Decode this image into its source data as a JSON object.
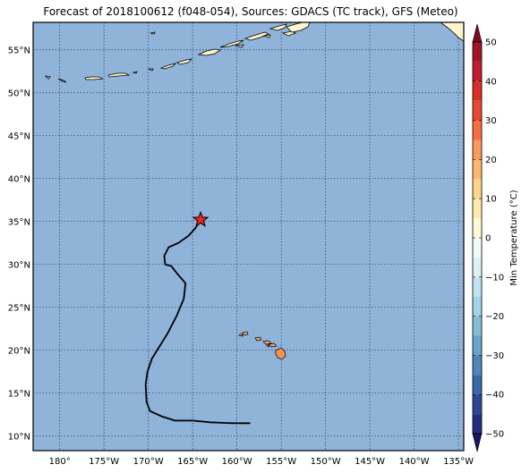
{
  "title": "Forecast of 2018100612 (f048-054), Sources: GDACS (TC track), GFS (Meteo)",
  "map": {
    "ocean_color": "#8fb3d9",
    "land_color": "#fff5cc",
    "grid": true,
    "lon_range": [
      -183,
      -134.4
    ],
    "lat_range": [
      8.3,
      58.2
    ],
    "lon_ticks": [
      {
        "value": -180,
        "label": "180°"
      },
      {
        "value": -175,
        "label": "175°W"
      },
      {
        "value": -170,
        "label": "170°W"
      },
      {
        "value": -165,
        "label": "165°W"
      },
      {
        "value": -160,
        "label": "160°W"
      },
      {
        "value": -155,
        "label": "155°W"
      },
      {
        "value": -150,
        "label": "150°W"
      },
      {
        "value": -145,
        "label": "145°W"
      },
      {
        "value": -140,
        "label": "140°W"
      },
      {
        "value": -135,
        "label": "135°W"
      }
    ],
    "lat_ticks": [
      {
        "value": 55,
        "label": "55°N"
      },
      {
        "value": 50,
        "label": "50°N"
      },
      {
        "value": 45,
        "label": "45°N"
      },
      {
        "value": 40,
        "label": "40°N"
      },
      {
        "value": 35,
        "label": "35°N"
      },
      {
        "value": 30,
        "label": "30°N"
      },
      {
        "value": 25,
        "label": "25°N"
      },
      {
        "value": 20,
        "label": "20°N"
      },
      {
        "value": 15,
        "label": "15°N"
      },
      {
        "value": 10,
        "label": "10°N"
      }
    ],
    "track": [
      [
        -158.5,
        11.5
      ],
      [
        -160.5,
        11.5
      ],
      [
        -163,
        11.6
      ],
      [
        -165,
        11.8
      ],
      [
        -167,
        11.8
      ],
      [
        -168.5,
        12.3
      ],
      [
        -169.8,
        12.9
      ],
      [
        -170.2,
        14
      ],
      [
        -170.3,
        16
      ],
      [
        -170.1,
        17.5
      ],
      [
        -169.6,
        19
      ],
      [
        -168.7,
        20.5
      ],
      [
        -167.8,
        22
      ],
      [
        -166.8,
        24
      ],
      [
        -166,
        26
      ],
      [
        -165.8,
        27.8
      ],
      [
        -166.8,
        29
      ],
      [
        -167.4,
        29.8
      ],
      [
        -168.1,
        30
      ],
      [
        -168.2,
        31
      ],
      [
        -167.7,
        32
      ],
      [
        -166.6,
        32.5
      ],
      [
        -165.5,
        33.3
      ],
      [
        -164.7,
        34.2
      ],
      [
        -164.1,
        35.2
      ]
    ],
    "storm_position": {
      "lon": -164.1,
      "lat": 35.2,
      "symbol": "star",
      "color": "#e8281e"
    }
  },
  "colorbar": {
    "label": "Min Temperature (°C)",
    "min": -50,
    "max": 50,
    "ticks": [
      "50",
      "40",
      "30",
      "20",
      "10",
      "0",
      "−10",
      "−20",
      "−30",
      "−40",
      "−50"
    ],
    "tick_values": [
      50,
      40,
      30,
      20,
      10,
      0,
      -10,
      -20,
      -30,
      -40,
      -50
    ],
    "bands": [
      {
        "from": 45,
        "to": 50,
        "color": "#a01527"
      },
      {
        "from": 40,
        "to": 45,
        "color": "#be1e2d"
      },
      {
        "from": 35,
        "to": 40,
        "color": "#d73027"
      },
      {
        "from": 30,
        "to": 35,
        "color": "#e34a33"
      },
      {
        "from": 25,
        "to": 30,
        "color": "#f46d43"
      },
      {
        "from": 20,
        "to": 25,
        "color": "#fb9a5a"
      },
      {
        "from": 15,
        "to": 20,
        "color": "#fdb86d"
      },
      {
        "from": 10,
        "to": 15,
        "color": "#fed38a"
      },
      {
        "from": 5,
        "to": 10,
        "color": "#fee9ac"
      },
      {
        "from": 0,
        "to": 5,
        "color": "#fff9d6"
      },
      {
        "from": -5,
        "to": 0,
        "color": "#f1fbfa"
      },
      {
        "from": -10,
        "to": -5,
        "color": "#dcf1f3"
      },
      {
        "from": -15,
        "to": -10,
        "color": "#c0e4ef"
      },
      {
        "from": -20,
        "to": -15,
        "color": "#a3d3e6"
      },
      {
        "from": -25,
        "to": -20,
        "color": "#86bcda"
      },
      {
        "from": -30,
        "to": -25,
        "color": "#6aa3cc"
      },
      {
        "from": -35,
        "to": -30,
        "color": "#4f86bb"
      },
      {
        "from": -40,
        "to": -35,
        "color": "#3a67a8"
      },
      {
        "from": -45,
        "to": -40,
        "color": "#2b4896"
      },
      {
        "from": -50,
        "to": -45,
        "color": "#252c84"
      }
    ],
    "extend_top_color": "#7f0a1f",
    "extend_bottom_color": "#1a1565"
  }
}
